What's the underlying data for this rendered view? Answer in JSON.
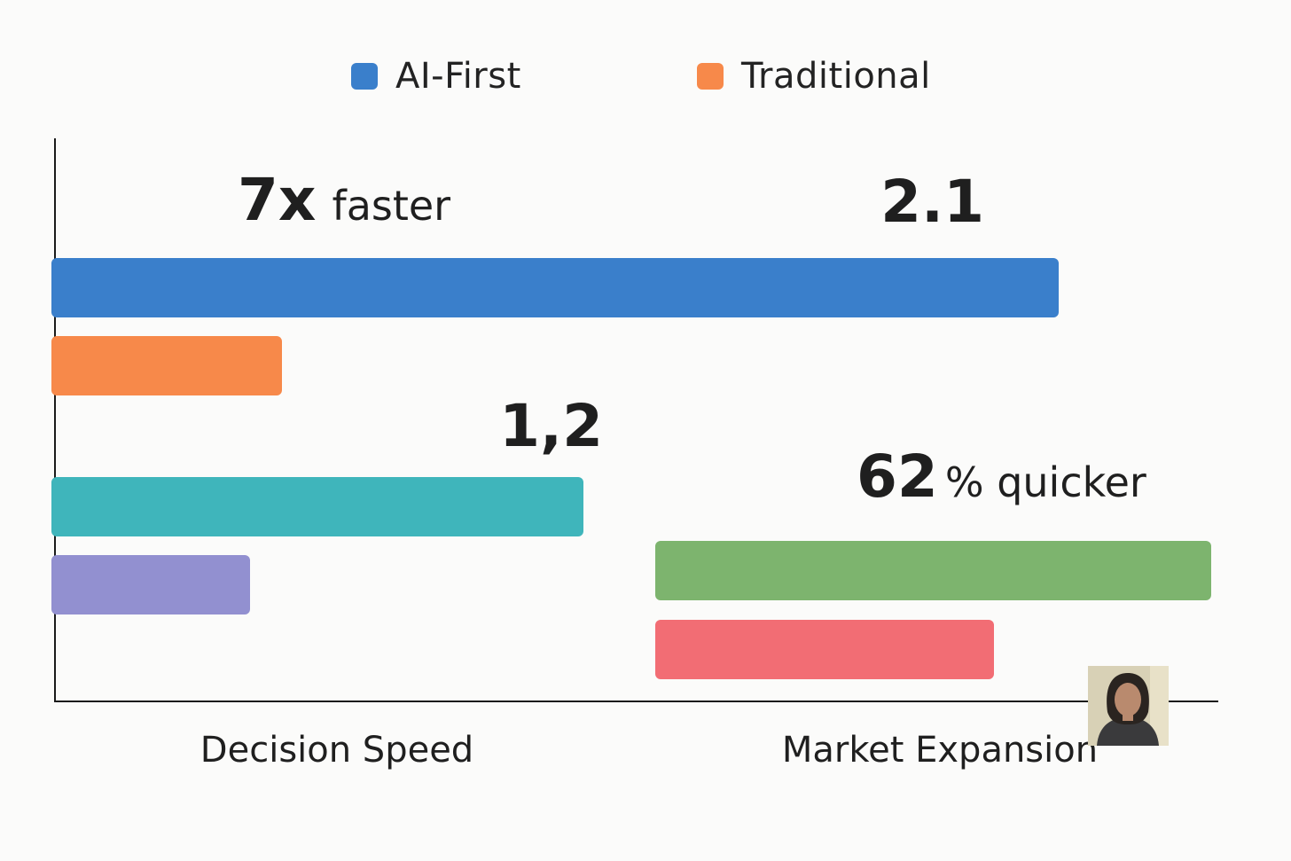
{
  "legend": {
    "items": [
      {
        "label": "AI-First",
        "color": "#3a7fcb"
      },
      {
        "label": "Traditional",
        "color": "#f7894a"
      }
    ]
  },
  "chart_data": {
    "type": "bar",
    "orientation": "horizontal",
    "groups": [
      {
        "category": "Decision Speed",
        "bars": [
          {
            "series": "AI-First",
            "value": 1132,
            "color": "#3a7fcb"
          },
          {
            "series": "Traditional",
            "value": 256,
            "color": "#f7894a"
          },
          {
            "series": "",
            "value": 596,
            "color": "#3fb5bb"
          },
          {
            "series": "",
            "value": 220,
            "color": "#9290d0"
          }
        ]
      },
      {
        "category": "Market Expansion",
        "bars": [
          {
            "series": "",
            "start": 677,
            "value": 627,
            "color": "#7db46e"
          },
          {
            "series": "",
            "start": 677,
            "value": 382,
            "color": "#f26d74"
          }
        ]
      }
    ],
    "annotations": [
      {
        "value": "7x",
        "suffix": "faster"
      },
      {
        "value": "2.1",
        "suffix": ""
      },
      {
        "value": "1,2",
        "suffix": ""
      },
      {
        "value": "62",
        "suffix": "% quicker"
      }
    ],
    "xlim": [
      0,
      1310
    ],
    "grid": false,
    "legend_position": "top-center"
  },
  "avatar": {
    "icon": "person-photo-icon"
  }
}
